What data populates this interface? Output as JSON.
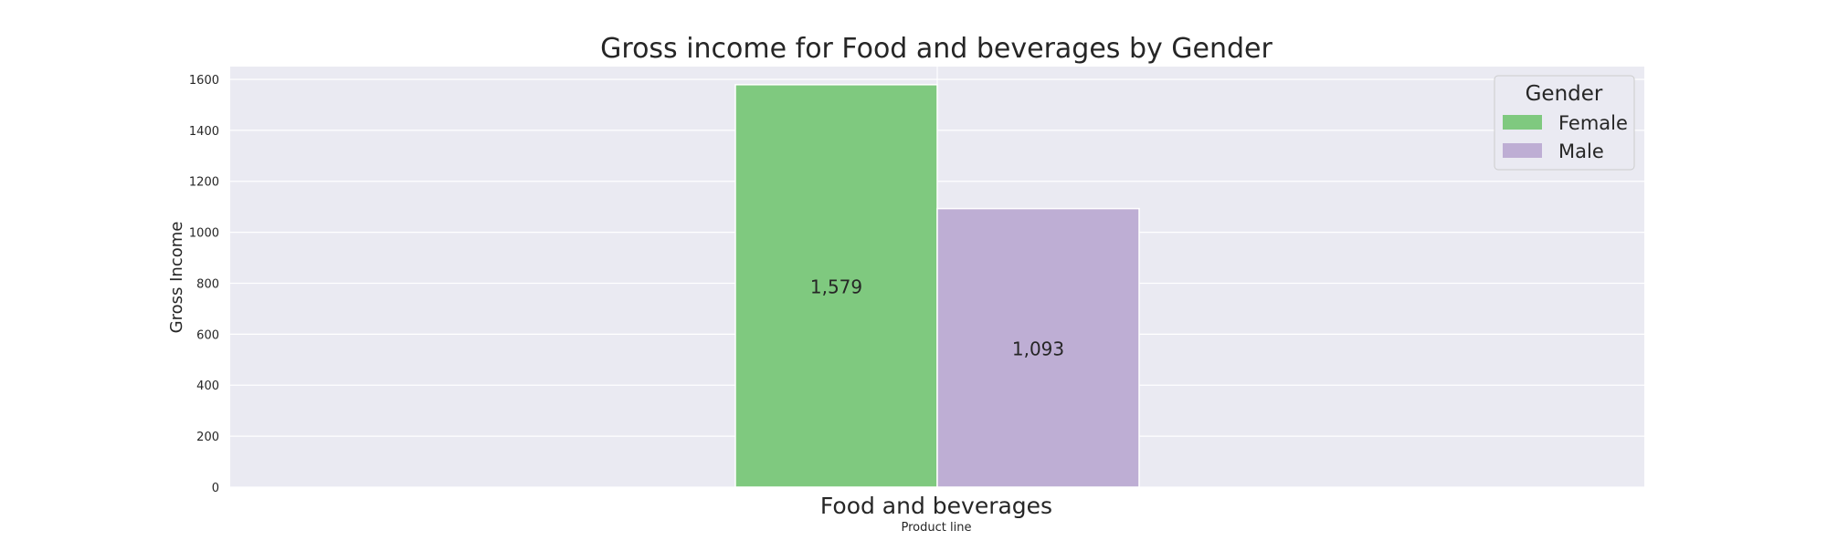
{
  "chart_data": {
    "type": "bar",
    "title": "Gross income for Food and beverages by Gender",
    "xlabel": "Product line",
    "ylabel": "Gross Income",
    "categories": [
      "Food and beverages"
    ],
    "series": [
      {
        "name": "Female",
        "values": [
          1579
        ],
        "label": "1,579",
        "color": "#7fc97f"
      },
      {
        "name": "Male",
        "values": [
          1093
        ],
        "label": "1,093",
        "color": "#beaed4"
      }
    ],
    "ylim": [
      0,
      1650
    ],
    "yticks": [
      0,
      200,
      400,
      600,
      800,
      1000,
      1200,
      1400,
      1600
    ],
    "grid": true,
    "legend": {
      "title": "Gender",
      "placement": "top-right"
    },
    "colors": {
      "plot_background": "#eaeaf2",
      "grid": "#ffffff",
      "text": "#262626"
    }
  }
}
